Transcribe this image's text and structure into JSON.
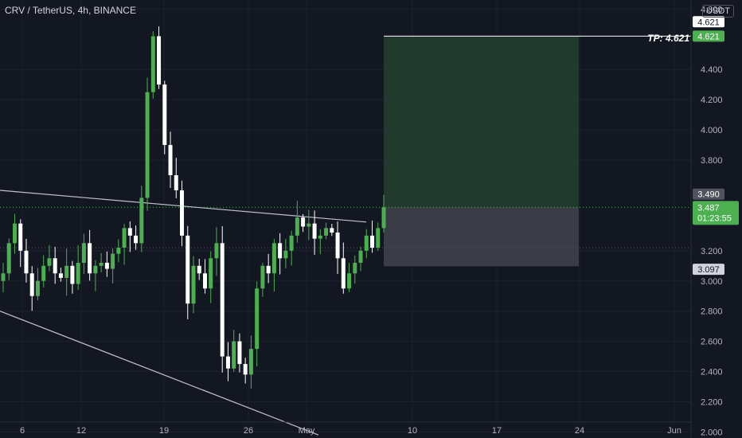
{
  "symbol_title": "CRV / TetherUS, 4h, BINANCE",
  "currency": "USDT",
  "tp_label": "TP: 4.621",
  "price_labels": {
    "tp_top": "4.621",
    "tp_green": "4.621",
    "entry": "3.490",
    "current": "3.487",
    "countdown": "01:23:55",
    "stop": "3.097"
  },
  "colors": {
    "background": "#131722",
    "up": "#4caf50",
    "down": "#ffffff",
    "grid": "#1e222d",
    "profit_zone": "#22392d",
    "loss_zone": "#3a3c47"
  },
  "chart_data": {
    "type": "candlestick",
    "title": "CRV / TetherUS, 4h, BINANCE",
    "y_axis": {
      "ticks": [
        "4.800",
        "4.400",
        "4.200",
        "4.000",
        "3.800",
        "3.200",
        "3.000",
        "2.800",
        "2.600",
        "2.400",
        "2.200",
        "2.000"
      ],
      "ylim": [
        1.96,
        4.86
      ]
    },
    "x_axis": {
      "ticks": [
        "6",
        "12",
        "19",
        "26",
        "May",
        "10",
        "17",
        "24",
        "Jun"
      ]
    },
    "price_series_close": [
      3.05,
      3.25,
      3.38,
      3.2,
      3.05,
      2.9,
      3.0,
      3.1,
      3.15,
      3.05,
      3.02,
      3.1,
      2.98,
      3.12,
      3.25,
      3.05,
      3.1,
      3.12,
      3.08,
      3.18,
      3.22,
      3.35,
      3.3,
      3.25,
      3.55,
      4.25,
      4.62,
      4.3,
      3.9,
      3.7,
      3.6,
      3.3,
      2.85,
      3.1,
      3.05,
      2.95,
      3.15,
      3.25,
      2.5,
      2.42,
      2.6,
      2.45,
      2.38,
      2.55,
      2.95,
      3.1,
      3.05,
      3.25,
      3.15,
      3.2,
      3.3,
      3.42,
      3.36,
      3.38,
      3.28,
      3.3,
      3.35,
      3.32,
      3.15,
      2.95,
      3.05,
      3.12,
      3.2,
      3.3,
      3.22,
      3.35,
      3.487
    ],
    "trendlines": [
      {
        "name": "upper",
        "points": [
          [
            "Apr 1",
            3.6
          ],
          [
            "May 6",
            3.39
          ]
        ]
      },
      {
        "name": "lower",
        "points": [
          [
            "Apr 1",
            2.8
          ],
          [
            "May 1",
            1.98
          ]
        ]
      }
    ],
    "position": {
      "type": "long",
      "entry": 3.49,
      "take_profit": 4.621,
      "stop_loss": 3.097,
      "current": 3.487
    }
  }
}
